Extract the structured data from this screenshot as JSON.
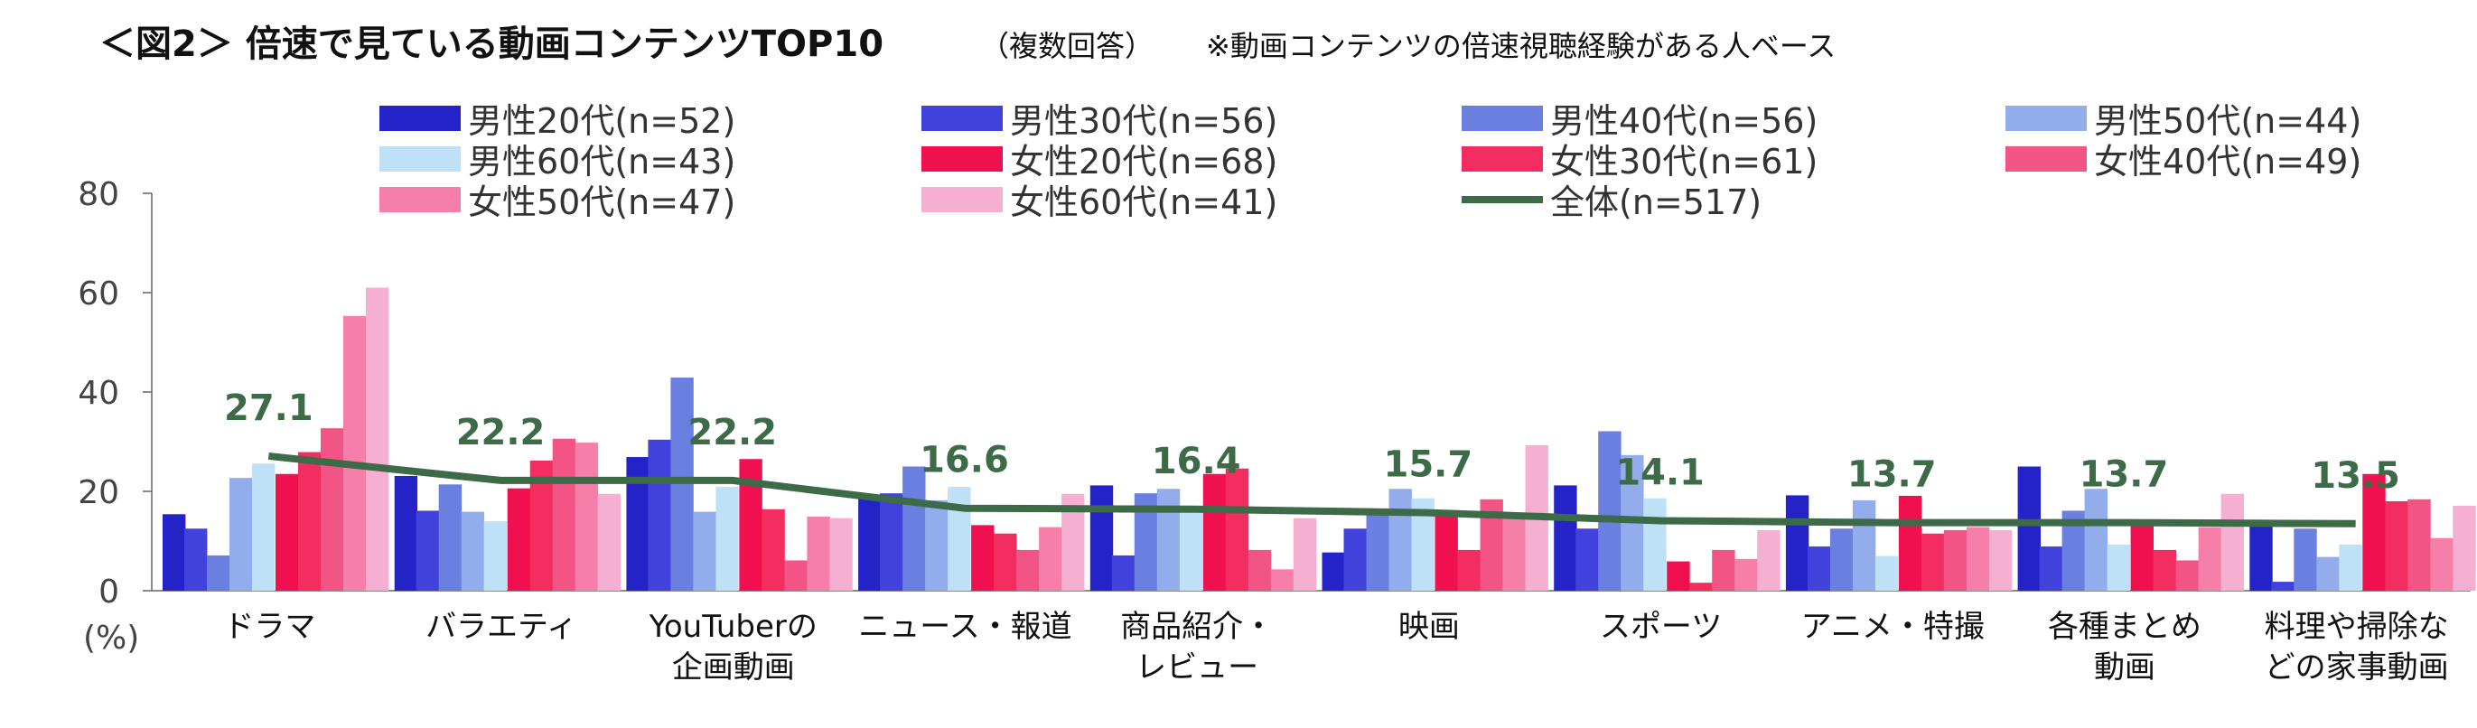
{
  "chart_data": {
    "type": "bar",
    "title": "＜図2＞ 倍速で見ている動画コンテンツTOP10",
    "subtitle_1": "（複数回答）",
    "subtitle_2": "※動画コンテンツの倍速視聴経験がある人ベース",
    "ylabel": "(%)",
    "ylim": [
      0,
      80
    ],
    "yticks": [
      "0",
      "20",
      "40",
      "60",
      "80"
    ],
    "categories": [
      [
        "ドラマ"
      ],
      [
        "バラエティ"
      ],
      [
        "YouTuberの",
        "企画動画"
      ],
      [
        "ニュース・報道"
      ],
      [
        "商品紹介・",
        "レビュー"
      ],
      [
        "映画"
      ],
      [
        "スポーツ"
      ],
      [
        "アニメ・特撮"
      ],
      [
        "各種まとめ",
        "動画"
      ],
      [
        "料理や掃除な",
        "どの家事動画"
      ]
    ],
    "series": [
      {
        "name": "男性20代(n=52)",
        "color": "#2323c8",
        "values": [
          15.4,
          23.1,
          26.9,
          19.2,
          21.2,
          7.7,
          21.2,
          19.2,
          25.0,
          13.5
        ]
      },
      {
        "name": "男性30代(n=56)",
        "color": "#4141dc",
        "values": [
          12.5,
          16.1,
          30.4,
          19.6,
          7.1,
          12.5,
          12.5,
          8.9,
          8.9,
          1.8
        ]
      },
      {
        "name": "男性40代(n=56)",
        "color": "#6a7fe0",
        "values": [
          7.1,
          21.4,
          42.9,
          25.0,
          19.6,
          16.1,
          32.1,
          12.5,
          16.1,
          12.5
        ]
      },
      {
        "name": "男性50代(n=44)",
        "color": "#92acec",
        "values": [
          22.7,
          15.9,
          15.9,
          18.2,
          20.5,
          20.5,
          27.3,
          18.2,
          20.5,
          6.8
        ]
      },
      {
        "name": "男性60代(n=43)",
        "color": "#bfe1f7",
        "values": [
          25.6,
          14.0,
          20.9,
          20.9,
          16.3,
          18.6,
          18.6,
          7.0,
          9.3,
          9.3
        ]
      },
      {
        "name": "女性20代(n=68)",
        "color": "#f0104f",
        "values": [
          23.5,
          20.6,
          26.5,
          13.2,
          23.5,
          16.2,
          5.9,
          19.1,
          13.2,
          23.5
        ]
      },
      {
        "name": "女性30代(n=61)",
        "color": "#f22e61",
        "values": [
          27.9,
          26.2,
          16.4,
          11.5,
          24.6,
          8.2,
          1.6,
          11.5,
          8.2,
          18.0
        ]
      },
      {
        "name": "女性40代(n=49)",
        "color": "#f25486",
        "values": [
          32.7,
          30.6,
          6.1,
          8.2,
          8.2,
          18.4,
          8.2,
          12.2,
          6.1,
          18.4
        ]
      },
      {
        "name": "女性50代(n=47)",
        "color": "#f57fa9",
        "values": [
          55.3,
          29.8,
          14.9,
          12.8,
          4.3,
          14.9,
          6.4,
          12.8,
          12.8,
          10.6
        ]
      },
      {
        "name": "女性60代(n=41)",
        "color": "#f5b0d1",
        "values": [
          61.0,
          19.5,
          14.6,
          19.5,
          14.6,
          29.3,
          12.2,
          12.2,
          19.5,
          17.1
        ]
      }
    ],
    "total": {
      "name": "全体(n=517)",
      "color": "#3d6a47",
      "values": [
        27.1,
        22.2,
        22.2,
        16.6,
        16.4,
        15.7,
        14.1,
        13.7,
        13.7,
        13.5
      ]
    },
    "legend": "top",
    "grid": false
  }
}
